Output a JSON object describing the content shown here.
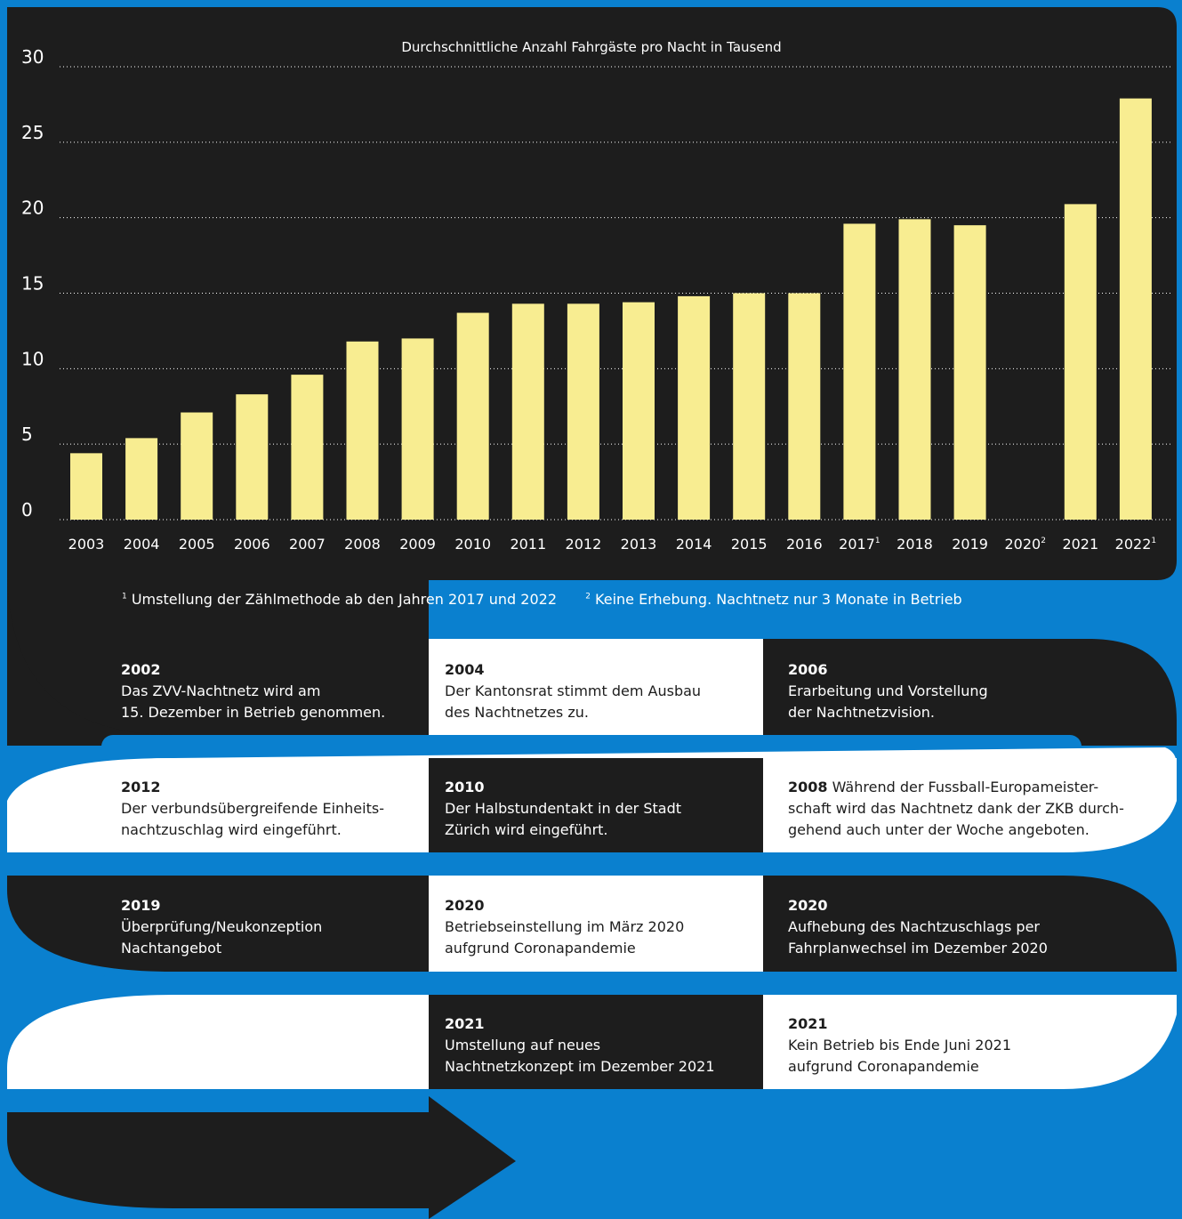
{
  "chart_data": {
    "type": "bar",
    "title": "Durchschnittliche Anzahl Fahrgäste pro Nacht in Tausend",
    "categories": [
      "2003",
      "2004",
      "2005",
      "2006",
      "2007",
      "2008",
      "2009",
      "2010",
      "2011",
      "2012",
      "2013",
      "2014",
      "2015",
      "2016",
      "2017",
      "2018",
      "2019",
      "2020",
      "2021",
      "2022"
    ],
    "category_superscripts": [
      "",
      "",
      "",
      "",
      "",
      "",
      "",
      "",
      "",
      "",
      "",
      "",
      "",
      "",
      "1",
      "",
      "",
      "2",
      "",
      "1"
    ],
    "values": [
      4.4,
      5.4,
      7.1,
      8.3,
      9.6,
      11.8,
      12.0,
      13.7,
      14.3,
      14.3,
      14.4,
      14.8,
      15.0,
      15.0,
      19.6,
      19.9,
      19.5,
      null,
      20.9,
      27.9
    ],
    "yticks": [
      0,
      5,
      10,
      15,
      20,
      25,
      30
    ],
    "ylim": [
      0,
      30
    ],
    "grid": true,
    "bar_color": "#f8ed91"
  },
  "footnotes": {
    "n1": "1",
    "text1": "Umstellung der Zählmethode ab den Jahren 2017 und 2022",
    "n2": "2",
    "text2": "Keine Erhebung. Nachtnetz nur 3 Monate in Betrieb"
  },
  "timeline": [
    {
      "year": "2002",
      "text": "Das ZVV-Nachtnetz wird am\n15. Dezember in Betrieb genommen."
    },
    {
      "year": "2004",
      "text": "Der Kantonsrat stimmt dem Ausbau\ndes Nachtnetzes zu."
    },
    {
      "year": "2006",
      "text": "Erarbeitung und Vorstellung\nder Nachtnetzvision."
    },
    {
      "year": "2012",
      "text": "Der verbundsübergreifende Einheits-\nnachtzuschlag wird eingeführt."
    },
    {
      "year": "2010",
      "text": "Der Halbstundentakt in der Stadt\nZürich wird eingeführt."
    },
    {
      "year": "2008",
      "text": "Während der Fussball-Europameister-\nschaft wird das Nachtnetz dank der ZKB durch-\ngehend auch unter der Woche angeboten."
    },
    {
      "year": "2019",
      "text": "Überprüfung/Neukonzeption\nNachtangebot"
    },
    {
      "year": "2020",
      "text": "Betriebseinstellung im März 2020\naufgrund Coronapandemie"
    },
    {
      "year": "2020",
      "text": "Aufhebung des Nachtzuschlags per\nFahrplanwechsel im Dezember 2020"
    },
    {
      "year": "2021",
      "text": "Umstellung auf neues\nNachtnetzkonzept im Dezember 2021"
    },
    {
      "year": "2021",
      "text": "Kein Betrieb bis Ende Juni 2021\naufgrund Coronapandemie"
    }
  ],
  "colors": {
    "background": "#0a80cf",
    "dark": "#1d1d1d",
    "light": "#ffffff",
    "bar": "#f8ed91"
  }
}
